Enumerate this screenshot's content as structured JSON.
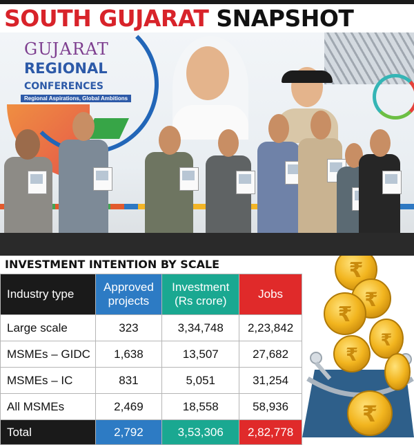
{
  "headline": {
    "part1": "SOUTH GUJARAT",
    "part2": "SNAPSHOT"
  },
  "photo": {
    "logo": {
      "line1": "GUJARAT",
      "line2": "REGIONAL",
      "line3": "CONFERENCES",
      "tagline": "Regional Aspirations, Global Ambitions"
    }
  },
  "section_title": "INVESTMENT INTENTION BY SCALE",
  "table": {
    "headers": [
      {
        "line1": "Industry type",
        "line2": ""
      },
      {
        "line1": "Approved",
        "line2": "projects"
      },
      {
        "line1": "Investment",
        "line2": "(Rs crore)"
      },
      {
        "line1": "Jobs",
        "line2": ""
      }
    ],
    "rows": [
      [
        "Large scale",
        "323",
        "3,34,748",
        "2,23,842"
      ],
      [
        "MSMEs – GIDC",
        "1,638",
        "13,507",
        "27,682"
      ],
      [
        "MSMEs – IC",
        "831",
        "5,051",
        "31,254"
      ],
      [
        "All MSMEs",
        "2,469",
        "18,558",
        "58,936"
      ]
    ],
    "total": [
      "Total",
      "2,792",
      "3,53,306",
      "2,82,778"
    ]
  },
  "colors": {
    "headline_red": "#d8232a",
    "header_black": "#1a1a1a",
    "header_blue": "#2d7bc4",
    "header_teal": "#1aa891",
    "header_red": "#e02a2a",
    "coin_gold": "#f2b51f"
  },
  "icons": [
    "rupee-coin-icon",
    "purse-icon"
  ]
}
